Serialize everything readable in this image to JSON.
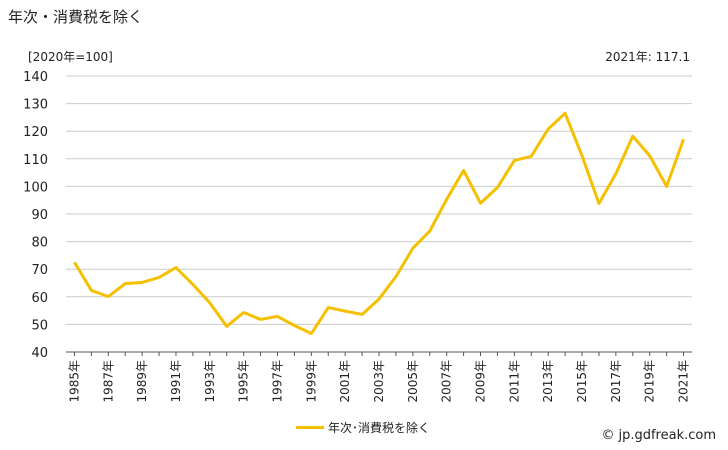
{
  "title": "年次・消費税を除く",
  "unit_label": "[2020年=100]",
  "latest_label": "2021年: 117.1",
  "legend_label": "年次･消費税を除く",
  "credit": "jp.gdfreak.com",
  "colors": {
    "line": "#f5c000",
    "grid": "#cccccc",
    "axis": "#555555"
  },
  "chart_data": {
    "type": "line",
    "title": "年次・消費税を除く",
    "ylabel": "[2020年=100]",
    "ylim": [
      40,
      140
    ],
    "yticks": [
      40,
      50,
      60,
      70,
      80,
      90,
      100,
      110,
      120,
      130,
      140
    ],
    "grid": true,
    "legend_position": "bottom",
    "x": [
      "1985年",
      "1986年",
      "1987年",
      "1988年",
      "1989年",
      "1990年",
      "1991年",
      "1992年",
      "1993年",
      "1994年",
      "1995年",
      "1996年",
      "1997年",
      "1998年",
      "1999年",
      "2000年",
      "2001年",
      "2002年",
      "2003年",
      "2004年",
      "2005年",
      "2006年",
      "2007年",
      "2008年",
      "2009年",
      "2010年",
      "2011年",
      "2012年",
      "2013年",
      "2014年",
      "2015年",
      "2016年",
      "2017年",
      "2018年",
      "2019年",
      "2020年",
      "2021年"
    ],
    "xtick_labels": [
      "1985年",
      "1987年",
      "1989年",
      "1991年",
      "1993年",
      "1995年",
      "1997年",
      "1999年",
      "2001年",
      "2003年",
      "2005年",
      "2007年",
      "2009年",
      "2011年",
      "2013年",
      "2015年",
      "2017年",
      "2019年",
      "2021年"
    ],
    "series": [
      {
        "name": "年次･消費税を除く",
        "values": [
          72.5,
          62.3,
          60.1,
          64.8,
          65.2,
          67.0,
          70.6,
          64.5,
          57.8,
          49.3,
          54.3,
          51.8,
          52.9,
          49.6,
          46.7,
          56.1,
          54.8,
          53.6,
          59.2,
          67.3,
          77.6,
          83.8,
          95.3,
          105.8,
          93.9,
          99.6,
          109.4,
          110.9,
          120.8,
          126.5,
          111.1,
          93.8,
          104.6,
          118.2,
          111.1,
          100.0,
          117.1
        ]
      }
    ]
  }
}
